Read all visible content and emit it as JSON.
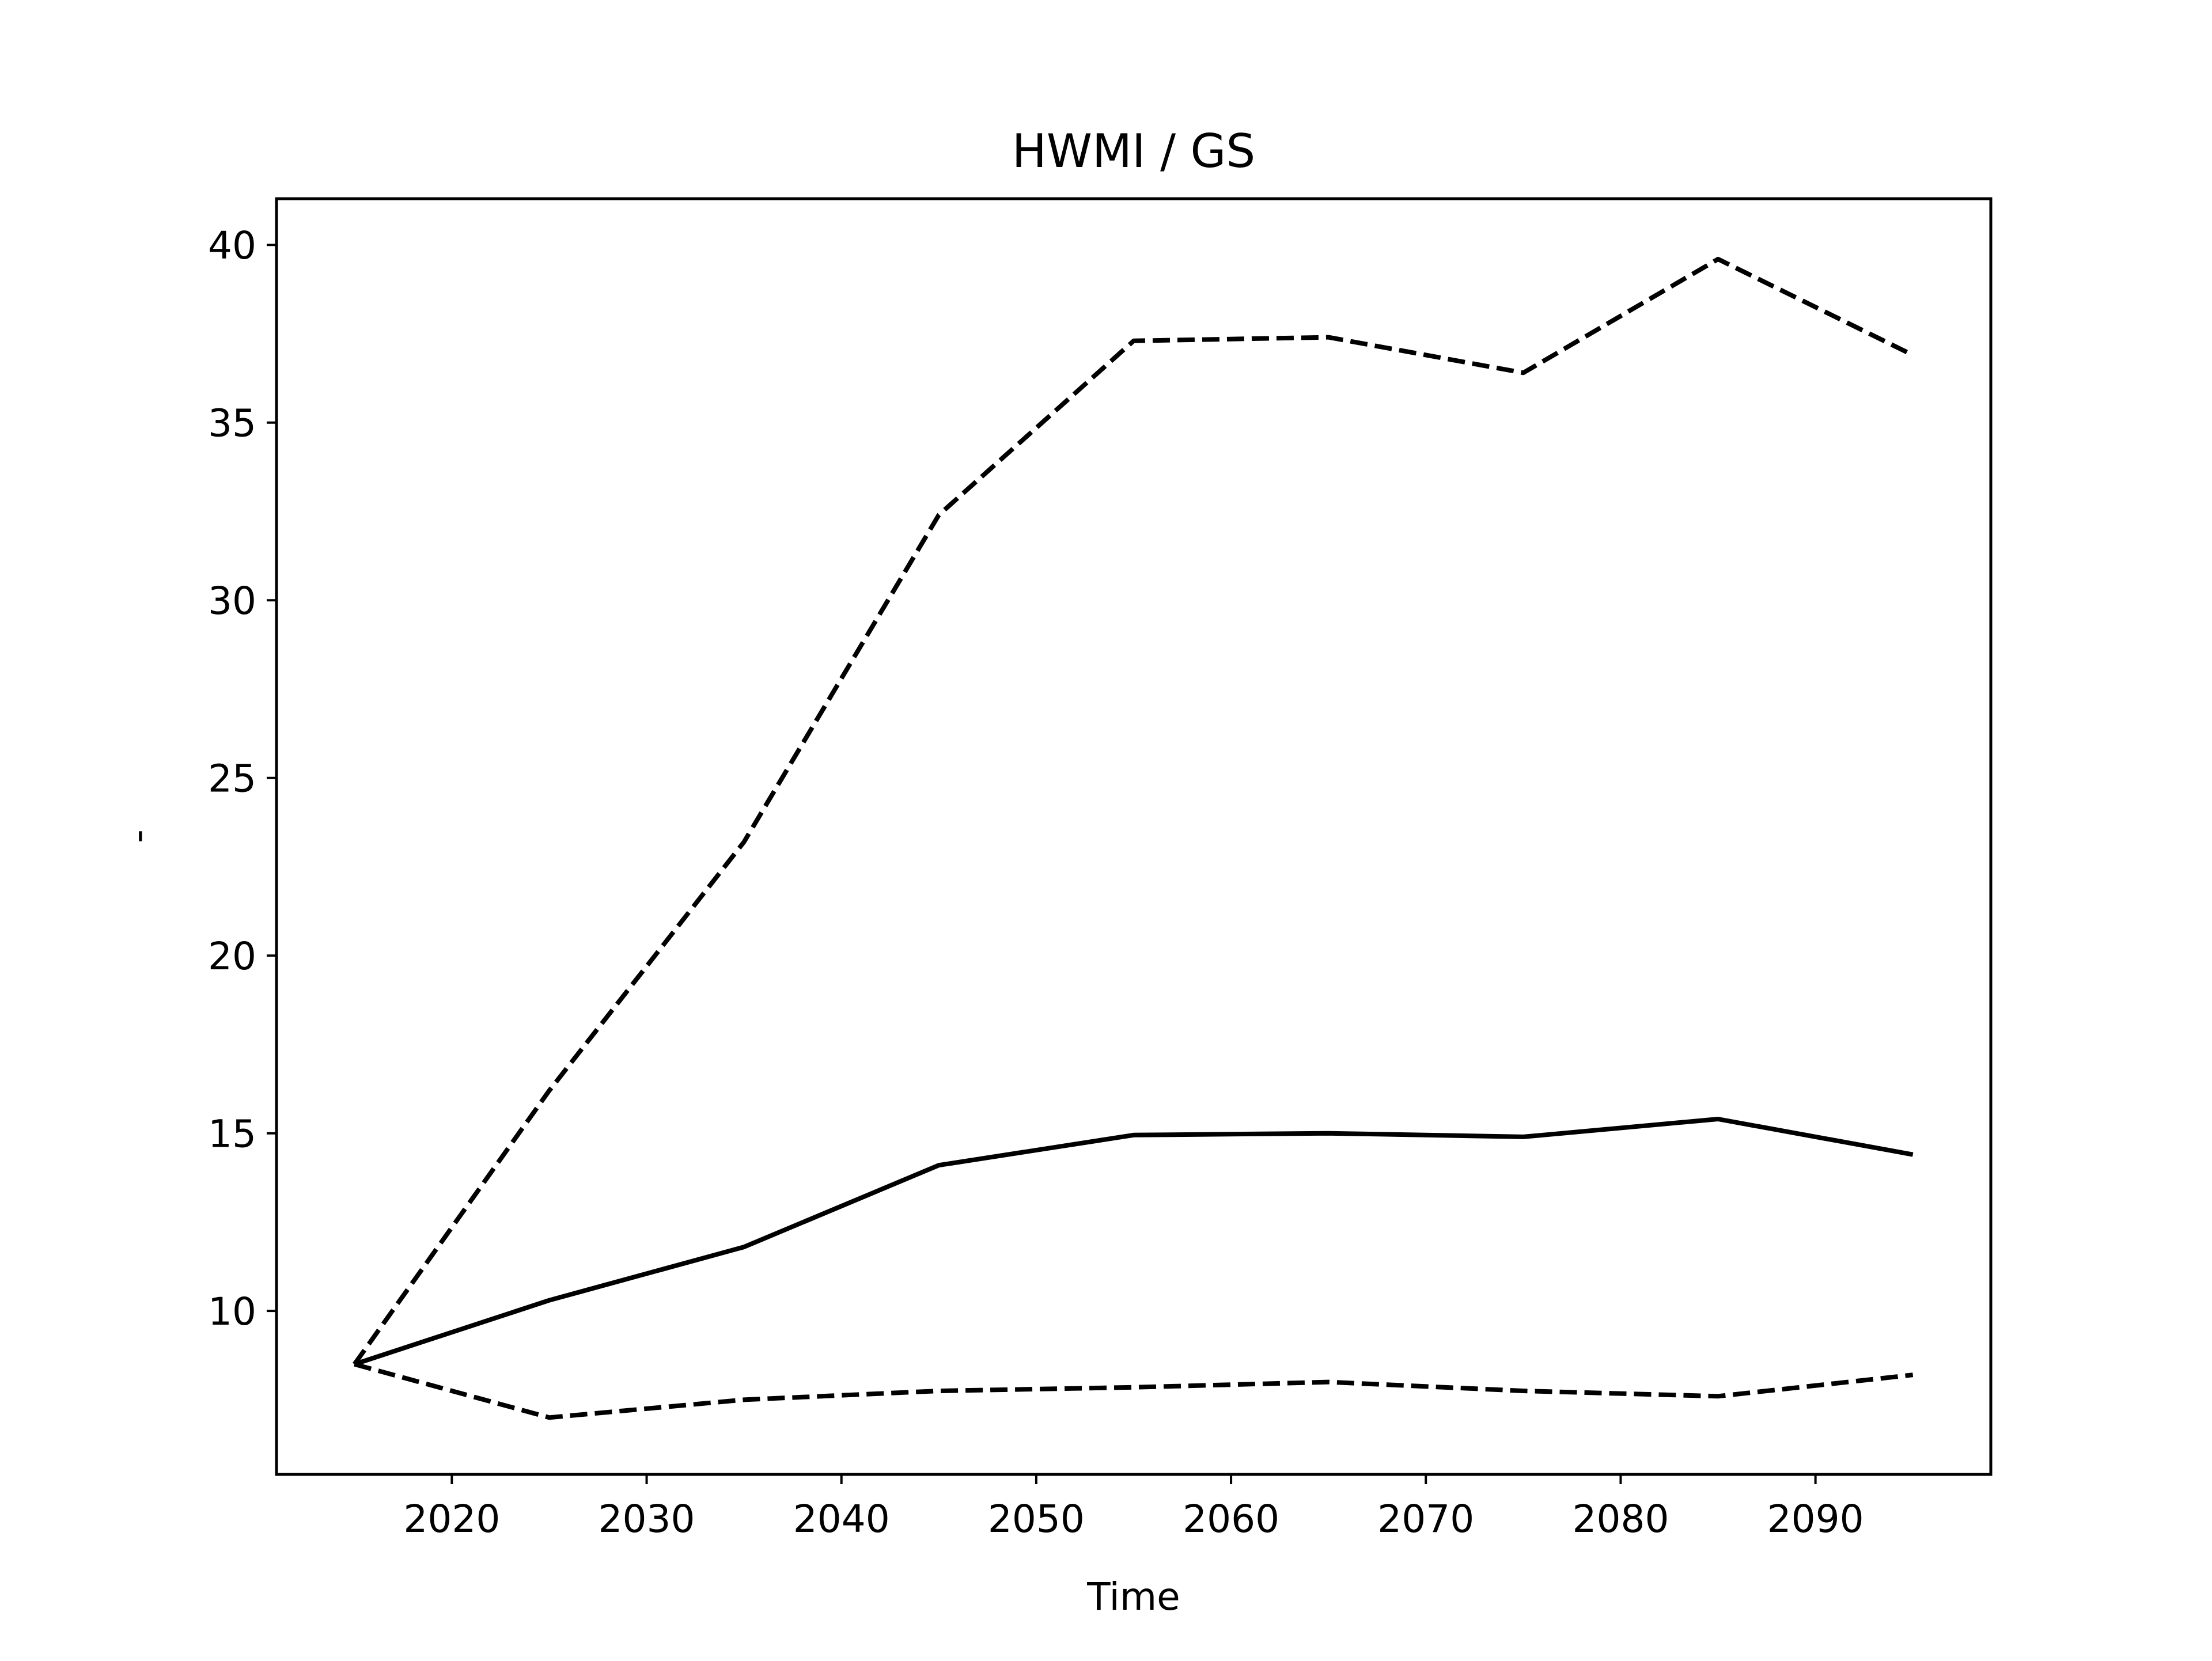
{
  "chart_data": {
    "type": "line",
    "title": "HWMI / GS",
    "xlabel": "Time",
    "ylabel": "-",
    "xlim": [
      2011,
      2099
    ],
    "ylim": [
      5.4,
      41.3
    ],
    "xticks": [
      2020,
      2030,
      2040,
      2050,
      2060,
      2070,
      2080,
      2090
    ],
    "yticks": [
      10,
      15,
      20,
      25,
      30,
      35,
      40
    ],
    "grid": false,
    "legend": "none",
    "x": [
      2015,
      2025,
      2035,
      2045,
      2055,
      2065,
      2075,
      2085,
      2095
    ],
    "series": [
      {
        "style": "solid",
        "color": "#000000",
        "values": [
          8.5,
          10.3,
          11.8,
          14.1,
          14.95,
          15.0,
          14.9,
          15.4,
          14.4
        ]
      },
      {
        "style": "dashed",
        "color": "#000000",
        "values": [
          8.5,
          16.2,
          23.2,
          32.4,
          37.3,
          37.4,
          36.4,
          39.6,
          36.9
        ]
      },
      {
        "style": "dashed",
        "color": "#000000",
        "values": [
          8.5,
          7.0,
          7.5,
          7.75,
          7.85,
          8.0,
          7.75,
          7.6,
          8.2
        ]
      }
    ]
  }
}
